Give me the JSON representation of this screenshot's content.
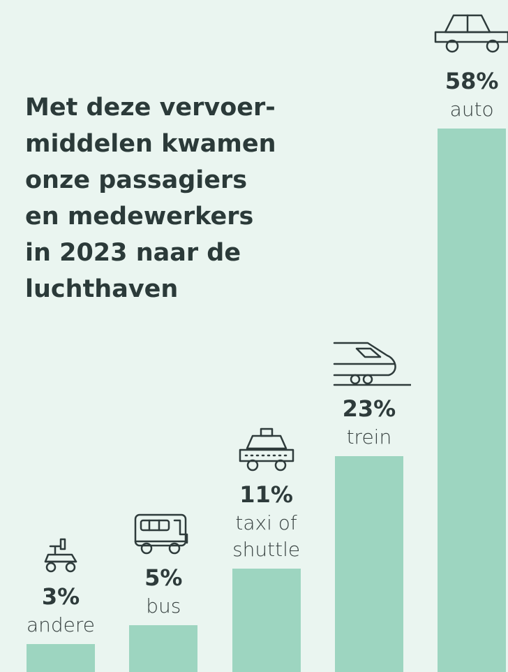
{
  "chart_data": {
    "type": "bar",
    "title": "Met deze vervoer-middelen kwamen onze passagiers en medewerkers in 2023 naar de luchthaven",
    "categories": [
      "andere",
      "bus",
      "taxi of shuttle",
      "trein",
      "auto"
    ],
    "values": [
      3,
      5,
      11,
      23,
      58
    ],
    "value_labels": [
      "3%",
      "5%",
      "11%",
      "23%",
      "58%"
    ],
    "color": "#9dd5c0"
  }
}
